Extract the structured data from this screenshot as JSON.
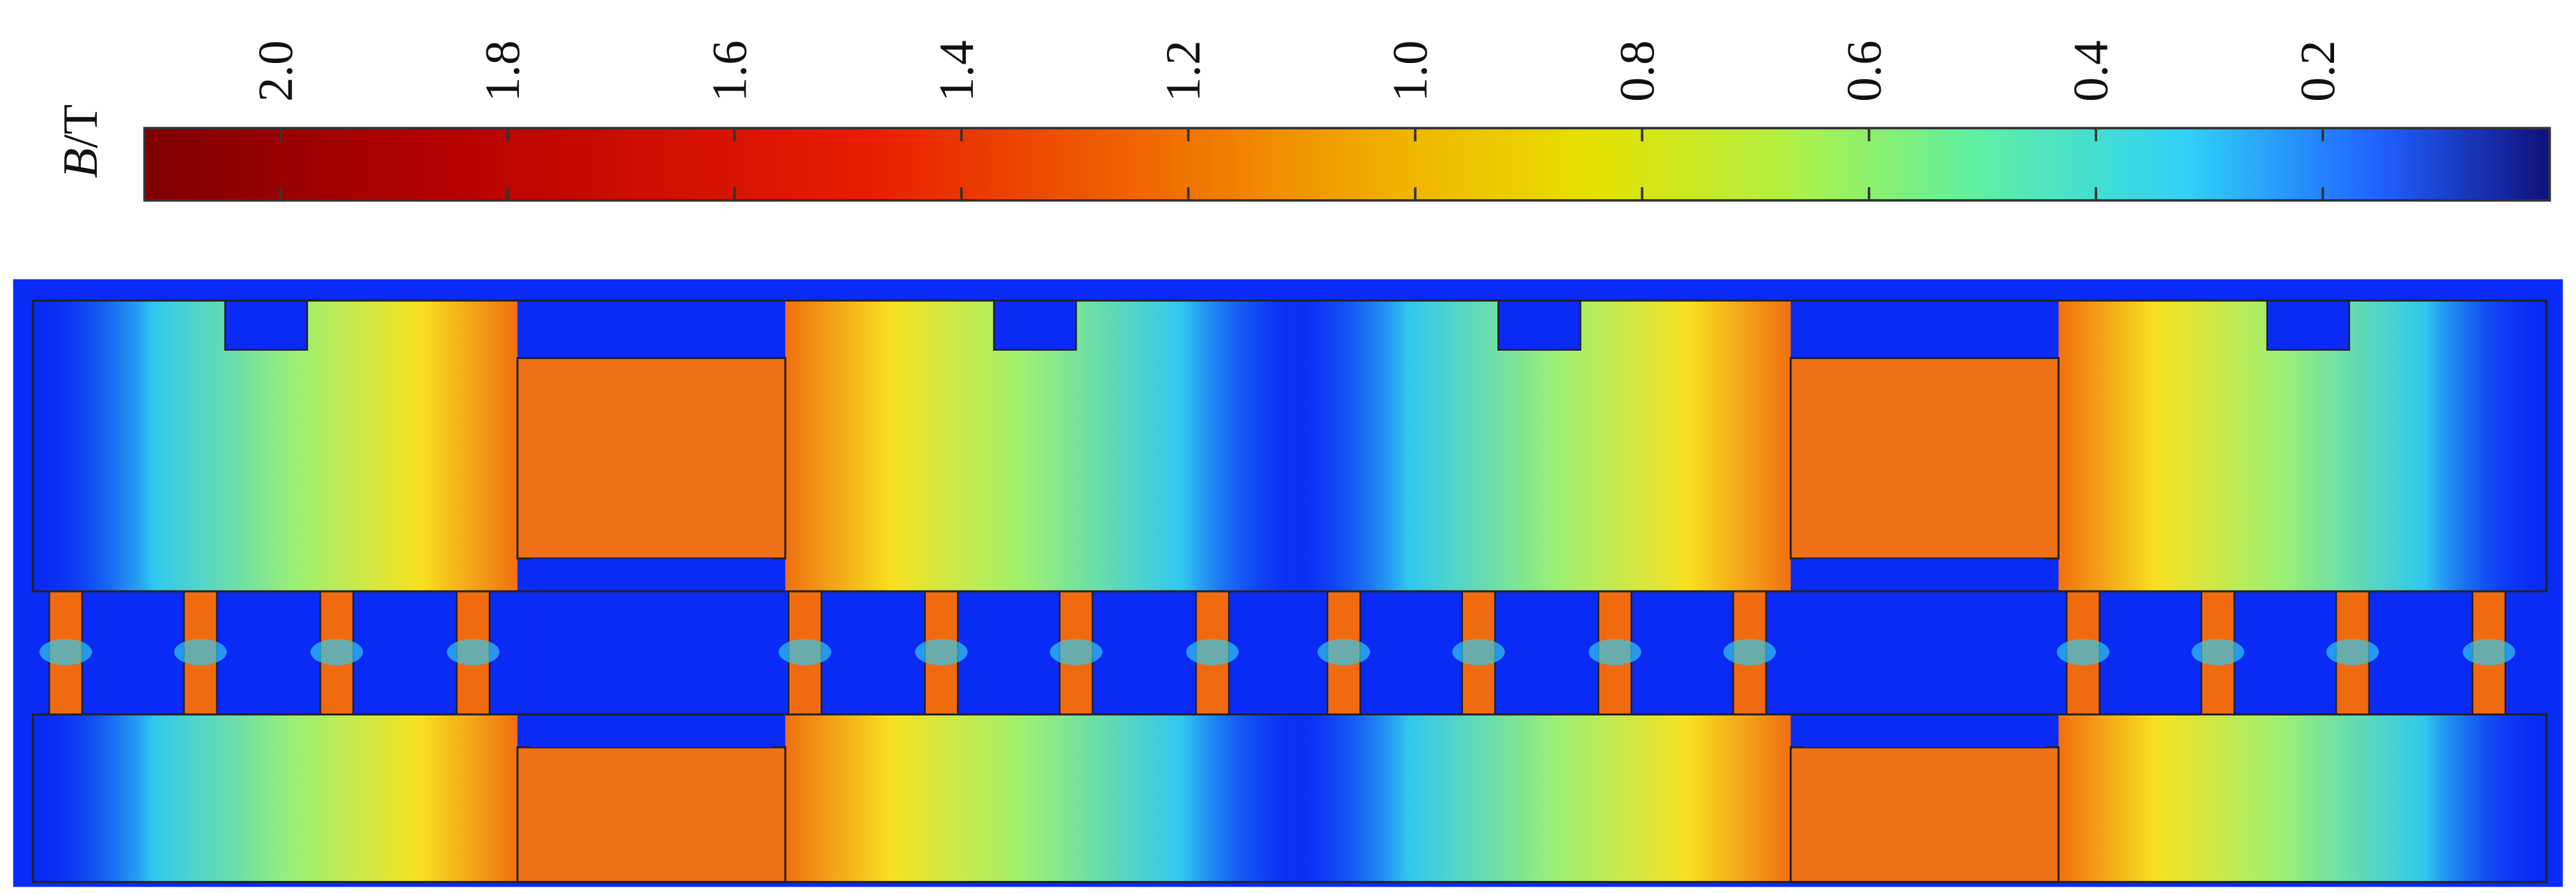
{
  "colorbar": {
    "label_symbol": "B",
    "label_unit": "/T",
    "lim": [
      2.12,
      0
    ],
    "ticks": [
      {
        "value": 2,
        "label": "2.0"
      },
      1.8,
      1.6,
      1.4,
      1.2,
      {
        "value": 1,
        "label": "1.0"
      },
      0.8,
      0.6,
      0.4,
      0.2
    ]
  }
}
